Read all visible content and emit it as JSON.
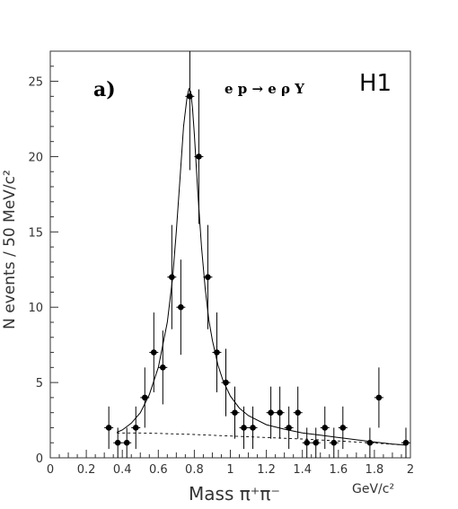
{
  "chart_data": {
    "type": "scatter",
    "panel_label": "a)",
    "reaction": "e p → e ρ Y",
    "experiment": "H1",
    "xlabel": "Mass π⁺π⁻",
    "xunit": "GeV/c²",
    "ylabel": "N events / 50 MeV/c²",
    "xlim": [
      0,
      2
    ],
    "ylim": [
      0,
      27
    ],
    "x_ticks": [
      "0",
      "0.2",
      "0.4",
      "0.6",
      "0.8",
      "1",
      "1.2",
      "1.4",
      "1.6",
      "1.8",
      "2"
    ],
    "y_ticks": [
      "0",
      "5",
      "10",
      "15",
      "20",
      "25"
    ],
    "grid": false,
    "series": [
      {
        "values": [
          {
            "x": 0.325,
            "y": 2,
            "err": 1.41
          },
          {
            "x": 0.375,
            "y": 1,
            "err": 1.0
          },
          {
            "x": 0.425,
            "y": 1,
            "err": 1.0
          },
          {
            "x": 0.475,
            "y": 2,
            "err": 1.41
          },
          {
            "x": 0.525,
            "y": 4,
            "err": 2.0
          },
          {
            "x": 0.575,
            "y": 7,
            "err": 2.65
          },
          {
            "x": 0.625,
            "y": 6,
            "err": 2.45
          },
          {
            "x": 0.675,
            "y": 12,
            "err": 3.46
          },
          {
            "x": 0.725,
            "y": 10,
            "err": 3.16
          },
          {
            "x": 0.775,
            "y": 24,
            "err": 4.9
          },
          {
            "x": 0.825,
            "y": 20,
            "err": 4.47
          },
          {
            "x": 0.875,
            "y": 12,
            "err": 3.46
          },
          {
            "x": 0.925,
            "y": 7,
            "err": 2.65
          },
          {
            "x": 0.975,
            "y": 5,
            "err": 2.24
          },
          {
            "x": 1.025,
            "y": 3,
            "err": 1.73
          },
          {
            "x": 1.075,
            "y": 2,
            "err": 1.41
          },
          {
            "x": 1.125,
            "y": 2,
            "err": 1.41
          },
          {
            "x": 1.225,
            "y": 3,
            "err": 1.73
          },
          {
            "x": 1.275,
            "y": 3,
            "err": 1.73
          },
          {
            "x": 1.325,
            "y": 2,
            "err": 1.41
          },
          {
            "x": 1.375,
            "y": 3,
            "err": 1.73
          },
          {
            "x": 1.425,
            "y": 1,
            "err": 1.0
          },
          {
            "x": 1.475,
            "y": 1,
            "err": 1.0
          },
          {
            "x": 1.525,
            "y": 2,
            "err": 1.41
          },
          {
            "x": 1.575,
            "y": 1,
            "err": 1.0
          },
          {
            "x": 1.625,
            "y": 2,
            "err": 1.41
          },
          {
            "x": 1.775,
            "y": 1,
            "err": 1.0
          },
          {
            "x": 1.825,
            "y": 4,
            "err": 2.0
          },
          {
            "x": 1.975,
            "y": 1,
            "err": 1.0
          }
        ]
      }
    ],
    "fit_curve": [
      [
        0.37,
        1.7
      ],
      [
        0.4,
        1.85
      ],
      [
        0.45,
        2.3
      ],
      [
        0.5,
        3.0
      ],
      [
        0.55,
        4.2
      ],
      [
        0.6,
        6.0
      ],
      [
        0.65,
        9.0
      ],
      [
        0.68,
        12.0
      ],
      [
        0.7,
        15.0
      ],
      [
        0.72,
        18.5
      ],
      [
        0.74,
        22.0
      ],
      [
        0.76,
        24.0
      ],
      [
        0.77,
        24.5
      ],
      [
        0.78,
        24.3
      ],
      [
        0.79,
        23.2
      ],
      [
        0.8,
        21.5
      ],
      [
        0.82,
        17.5
      ],
      [
        0.84,
        14.0
      ],
      [
        0.86,
        11.3
      ],
      [
        0.88,
        9.2
      ],
      [
        0.9,
        7.8
      ],
      [
        0.93,
        6.2
      ],
      [
        0.96,
        5.1
      ],
      [
        1.0,
        4.1
      ],
      [
        1.05,
        3.3
      ],
      [
        1.1,
        2.8
      ],
      [
        1.2,
        2.2
      ],
      [
        1.3,
        1.9
      ],
      [
        1.4,
        1.65
      ],
      [
        1.5,
        1.5
      ],
      [
        1.6,
        1.35
      ],
      [
        1.7,
        1.2
      ],
      [
        1.8,
        1.05
      ],
      [
        1.9,
        0.92
      ],
      [
        1.97,
        0.85
      ]
    ],
    "background_curve": [
      [
        0.37,
        1.65
      ],
      [
        0.5,
        1.65
      ],
      [
        0.6,
        1.62
      ],
      [
        0.8,
        1.55
      ],
      [
        1.0,
        1.45
      ],
      [
        1.2,
        1.35
      ],
      [
        1.4,
        1.25
      ],
      [
        1.6,
        1.12
      ],
      [
        1.8,
        0.98
      ],
      [
        1.97,
        0.85
      ]
    ],
    "colors": {
      "axis": "#333333",
      "marker": "#000000",
      "curve": "#000000"
    }
  }
}
